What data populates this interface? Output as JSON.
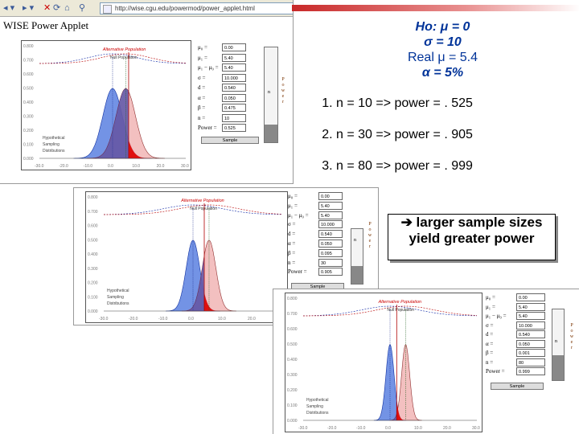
{
  "browser": {
    "url": "http://wise.cgu.edu/powermod/power_applet.html"
  },
  "applet": {
    "title": "WISE Power Applet",
    "alt_population_label": "Alternative Population",
    "null_population_label": "Null Population",
    "legend_lines": [
      "Hypothetical",
      "Sampling",
      "Distributions"
    ],
    "sample_button": "Sample",
    "vertical_power_letters": [
      "P",
      "o",
      "w",
      "e",
      "r"
    ],
    "n_label": "n",
    "param_labels": [
      "μ₀ =",
      "μ₁ =",
      "μ₁ − μ₀ =",
      "σ =",
      "d =",
      "α =",
      "β =",
      "n =",
      "Power ="
    ]
  },
  "panels": [
    {
      "y_ticks": [
        "0.800",
        "0.700",
        "0.600",
        "0.500",
        "0.400",
        "0.300",
        "0.200",
        "0.100",
        "0.000"
      ],
      "x_ticks": [
        "-30.0",
        "-20.0",
        "-10.0",
        "0.0",
        "10.0",
        "20.0",
        "30.0"
      ],
      "values": [
        "0.00",
        "5.40",
        "5.40",
        "10.000",
        "0.540",
        "0.050",
        "0.475",
        "10",
        "0.525"
      ],
      "power_fraction": 0.525
    },
    {
      "y_ticks": [
        "0.800",
        "0.700",
        "0.600",
        "0.500",
        "0.400",
        "0.300",
        "0.200",
        "0.100",
        "0.000"
      ],
      "x_ticks": [
        "-30.0",
        "-20.0",
        "-10.0",
        "0.0",
        "10.0",
        "20.0",
        "30.0"
      ],
      "values": [
        "0.00",
        "5.40",
        "5.40",
        "10.000",
        "0.540",
        "0.050",
        "0.095",
        "30",
        "0.905"
      ],
      "power_fraction": 0.905
    },
    {
      "y_ticks": [
        "0.800",
        "0.700",
        "0.600",
        "0.500",
        "0.400",
        "0.300",
        "0.200",
        "0.100",
        "0.000"
      ],
      "x_ticks": [
        "-30.0",
        "-20.0",
        "-10.0",
        "0.0",
        "10.0",
        "20.0",
        "30.0"
      ],
      "values": [
        "0.00",
        "5.40",
        "5.40",
        "10.000",
        "0.540",
        "0.050",
        "0.001",
        "80",
        "0.999"
      ],
      "power_fraction": 0.999
    }
  ],
  "hypotheses": {
    "h0": "Ho: μ = 0",
    "sigma": "σ = 10",
    "real_mu": "Real μ = 5.4",
    "alpha": "α = 5%"
  },
  "results": [
    "n = 10 => power = . 525",
    "n = 30 => power = . 905",
    "n = 80 => power = . 999"
  ],
  "callout": {
    "arrow": "➔",
    "line1": "larger sample sizes",
    "line2": "yield greater power"
  }
}
